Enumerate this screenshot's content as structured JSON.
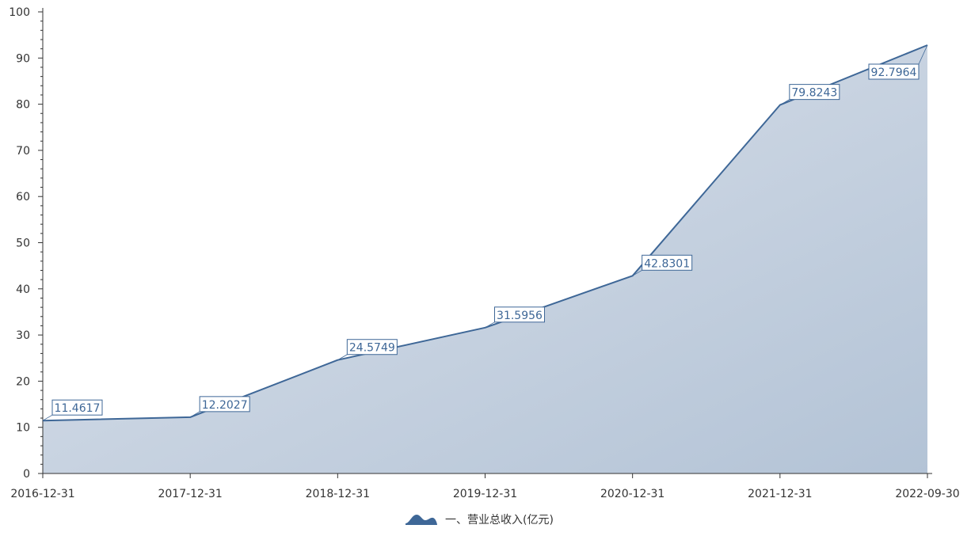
{
  "chart_data": {
    "type": "area",
    "x": [
      "2016-12-31",
      "2017-12-31",
      "2018-12-31",
      "2019-12-31",
      "2020-12-31",
      "2021-12-31",
      "2022-09-30"
    ],
    "series": [
      {
        "name": "一、营业总收入(亿元)",
        "values": [
          11.4617,
          12.2027,
          24.5749,
          31.5956,
          42.8301,
          79.8243,
          92.7964
        ],
        "labels": [
          "11.4617",
          "12.2027",
          "24.5749",
          "31.5956",
          "42.8301",
          "79.8243",
          "92.7964"
        ]
      }
    ],
    "ylim": [
      0,
      100
    ],
    "yticks": [
      "0",
      "10",
      "20",
      "30",
      "40",
      "50",
      "60",
      "70",
      "80",
      "90",
      "100"
    ],
    "grid": false,
    "legend_position": "bottom-center",
    "colors": {
      "line": "#3e6797",
      "area_top": "#dde3ec",
      "area_bottom": "#b3c3d6",
      "axis": "#333333"
    }
  }
}
